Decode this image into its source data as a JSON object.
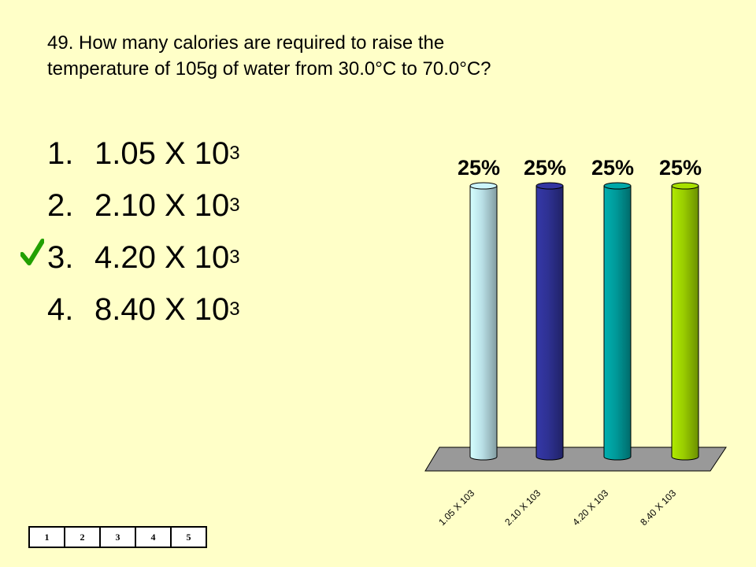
{
  "question": {
    "line1": "49. How many calories are required to raise the",
    "line2": "temperature of 105g of water from 30.0°C to 70.0°C?"
  },
  "answers": [
    {
      "num": "1.",
      "base": "1.05 X 10",
      "exp": "3"
    },
    {
      "num": "2.",
      "base": "2.10 X 10",
      "exp": "3"
    },
    {
      "num": "3.",
      "base": "4.20 X 10",
      "exp": "3"
    },
    {
      "num": "4.",
      "base": "8.40 X 10",
      "exp": "3"
    }
  ],
  "correct_answer_index": 2,
  "icons": {
    "correct_marker": "checkmark-icon"
  },
  "chart_data": {
    "type": "bar",
    "categories": [
      "1.05 X 103",
      "2.10 X 103",
      "4.20 X 103",
      "8.40 X 103"
    ],
    "values": [
      25,
      25,
      25,
      25
    ],
    "labels": [
      "25%",
      "25%",
      "25%",
      "25%"
    ],
    "colors": [
      "#b9dfe6",
      "#2e3192",
      "#009999",
      "#99cc00"
    ],
    "ylim": [
      0,
      25
    ],
    "grid": false,
    "style": "3d-cylinder"
  },
  "counter": {
    "cells": [
      "1",
      "2",
      "3",
      "4",
      "5"
    ]
  }
}
